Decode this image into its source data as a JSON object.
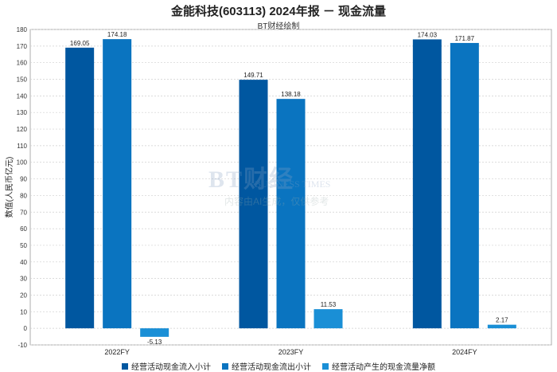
{
  "title": "金能科技(603113) 2024年报 － 现金流量",
  "subtitle": "BT财经绘制",
  "watermark": {
    "main": "BT财经",
    "sub": "BUSINESS TIMES",
    "note": "内容由AI生成，仅供参考"
  },
  "chart_data": {
    "type": "bar",
    "categories": [
      "2022FY",
      "2023FY",
      "2024FY"
    ],
    "ylabel": "数值(人民币亿元)",
    "ylim": [
      -10,
      180
    ],
    "yticks": [
      -10,
      0,
      10,
      20,
      30,
      40,
      50,
      60,
      70,
      80,
      90,
      100,
      110,
      120,
      130,
      140,
      150,
      160,
      170,
      180
    ],
    "grid": true,
    "legend_position": "bottom",
    "series": [
      {
        "name": "经营活动现金流入小计",
        "color": "#0057a0",
        "values": [
          169.05,
          149.71,
          174.03
        ],
        "labels": [
          "169.05",
          "149.71",
          "174.03"
        ]
      },
      {
        "name": "经营活动现金流出小计",
        "color": "#0a74c0",
        "values": [
          174.18,
          138.18,
          171.87
        ],
        "labels": [
          "174.18",
          "138.18",
          "171.87"
        ]
      },
      {
        "name": "经营活动产生的现金流量净额",
        "color": "#1a8fd6",
        "values": [
          -5.13,
          11.53,
          2.17
        ],
        "labels": [
          "-5.13",
          "11.53",
          "2.17"
        ]
      }
    ]
  }
}
